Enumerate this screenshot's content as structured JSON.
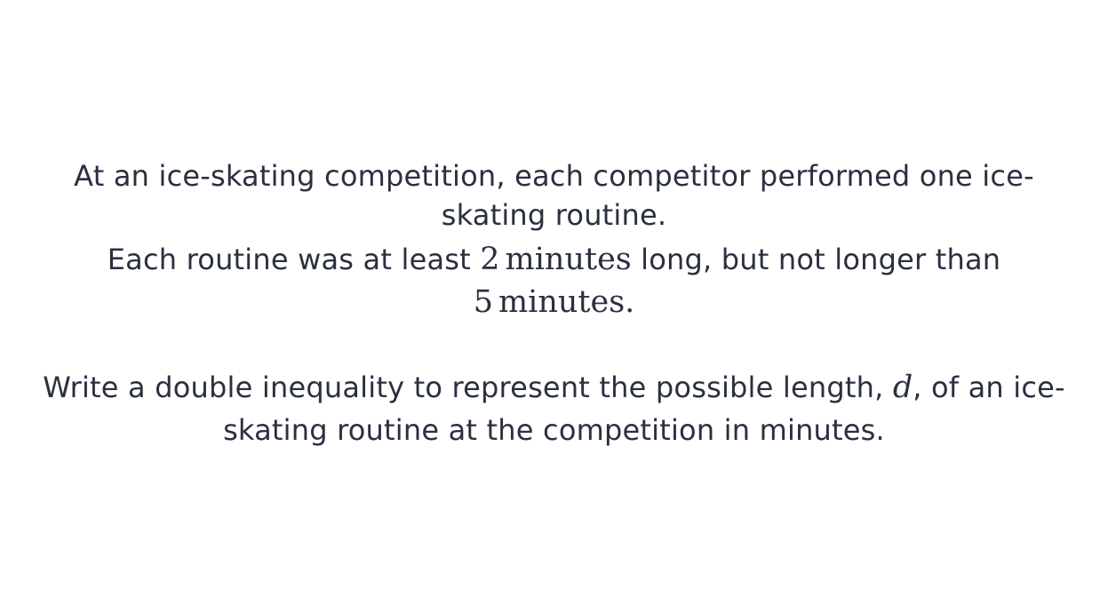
{
  "question": {
    "intro_line1": "At an ice-skating competition, each competitor performed one ice-",
    "intro_line2": "skating routine.",
    "constraint_prefix": "Each routine was at least ",
    "min_value": "2",
    "unit_1": "minutes",
    "constraint_middle": " long, but not longer than",
    "max_value": "5",
    "unit_2": "minutes.",
    "task_prefix": "Write a double inequality to represent the possible length, ",
    "variable": "d",
    "task_suffix": ", of an ice-",
    "task_line2": "skating routine at the competition in minutes."
  }
}
